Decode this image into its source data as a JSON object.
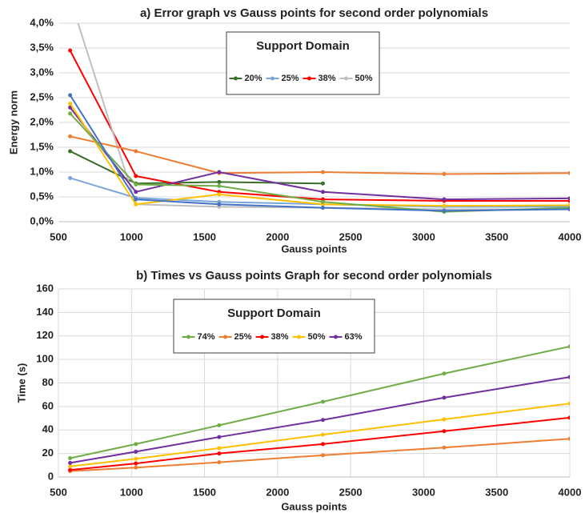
{
  "chart_data": [
    {
      "type": "line",
      "title": "a) Error graph vs Gauss points for second order polynomials",
      "xlabel": "Gauss points",
      "ylabel": "Energy norm",
      "x": [
        580,
        1030,
        1600,
        2310,
        3140,
        4000
      ],
      "xlim": [
        500,
        4000
      ],
      "xticks": [
        500,
        1000,
        1500,
        2000,
        2500,
        3000,
        3500,
        4000
      ],
      "ylim": [
        0,
        4
      ],
      "yticks": [
        {
          "value": 0,
          "label": "0,0%"
        },
        {
          "value": 0.5,
          "label": "0,5%"
        },
        {
          "value": 1,
          "label": "1,0%"
        },
        {
          "value": 1.5,
          "label": "1,5%"
        },
        {
          "value": 2,
          "label": "2,0%"
        },
        {
          "value": 2.5,
          "label": "2,5%"
        },
        {
          "value": 3,
          "label": "3,0%"
        },
        {
          "value": 3.5,
          "label": "3,5%"
        },
        {
          "value": 4,
          "label": "4,0%"
        }
      ],
      "grid_y": true,
      "grid_x": false,
      "legend_title": "Support Domain",
      "legend": "top",
      "series": [
        {
          "name": "20%",
          "color": "#3b6e2a",
          "values": [
            1.42,
            0.77,
            0.8,
            0.77,
            null,
            null
          ]
        },
        {
          "name": "25%",
          "color": "#7aa6dc",
          "values": [
            0.88,
            0.48,
            0.4,
            0.35,
            0.3,
            0.3
          ]
        },
        {
          "name": "38%",
          "color": "#ff0000",
          "values": [
            3.45,
            0.92,
            0.6,
            0.45,
            0.42,
            0.42
          ]
        },
        {
          "name": "50%",
          "color": "#bfbfbf",
          "values": [
            4.5,
            0.35,
            0.3,
            0.28,
            0.25,
            0.25
          ]
        },
        {
          "color": "#ed7d31",
          "values": [
            1.72,
            1.42,
            0.98,
            1.0,
            0.96,
            0.98
          ]
        },
        {
          "color": "#7030a0",
          "values": [
            2.3,
            0.6,
            1.0,
            0.6,
            0.45,
            0.47
          ]
        },
        {
          "color": "#ffc000",
          "values": [
            2.38,
            0.35,
            0.55,
            0.35,
            0.32,
            0.33
          ]
        },
        {
          "color": "#70ad47",
          "values": [
            2.18,
            0.75,
            0.72,
            0.4,
            0.2,
            0.28
          ]
        },
        {
          "color": "#4472c4",
          "values": [
            2.55,
            0.45,
            0.35,
            0.28,
            0.22,
            0.25
          ]
        }
      ]
    },
    {
      "type": "line",
      "title": "b) Times vs Gauss points Graph for second order polynomials",
      "xlabel": "Gauss points",
      "ylabel": "Time (s)",
      "x": [
        580,
        1030,
        1600,
        2310,
        3140,
        4000
      ],
      "xlim": [
        500,
        4000
      ],
      "xticks": [
        500,
        1000,
        1500,
        2000,
        2500,
        3000,
        3500,
        4000
      ],
      "ylim": [
        0,
        160
      ],
      "yticks": [
        0,
        20,
        40,
        60,
        80,
        100,
        120,
        140,
        160
      ],
      "grid_y": true,
      "grid_x": true,
      "legend_title": "Support Domain",
      "legend": "top",
      "series": [
        {
          "name": "74%",
          "color": "#70ad47",
          "values": [
            16,
            28,
            44,
            64,
            88,
            111
          ]
        },
        {
          "name": "25%",
          "color": "#ed7d31",
          "values": [
            5,
            8,
            12.5,
            18.5,
            25,
            32.5
          ]
        },
        {
          "name": "38%",
          "color": "#ff0000",
          "values": [
            6,
            11.5,
            20,
            28,
            39,
            50.5
          ]
        },
        {
          "name": "50%",
          "color": "#ffc000",
          "values": [
            9,
            15.5,
            24.5,
            36,
            49,
            62.5
          ]
        },
        {
          "name": "63%",
          "color": "#7030a0",
          "values": [
            12,
            21.5,
            34,
            48.5,
            67.5,
            85
          ]
        }
      ]
    }
  ]
}
